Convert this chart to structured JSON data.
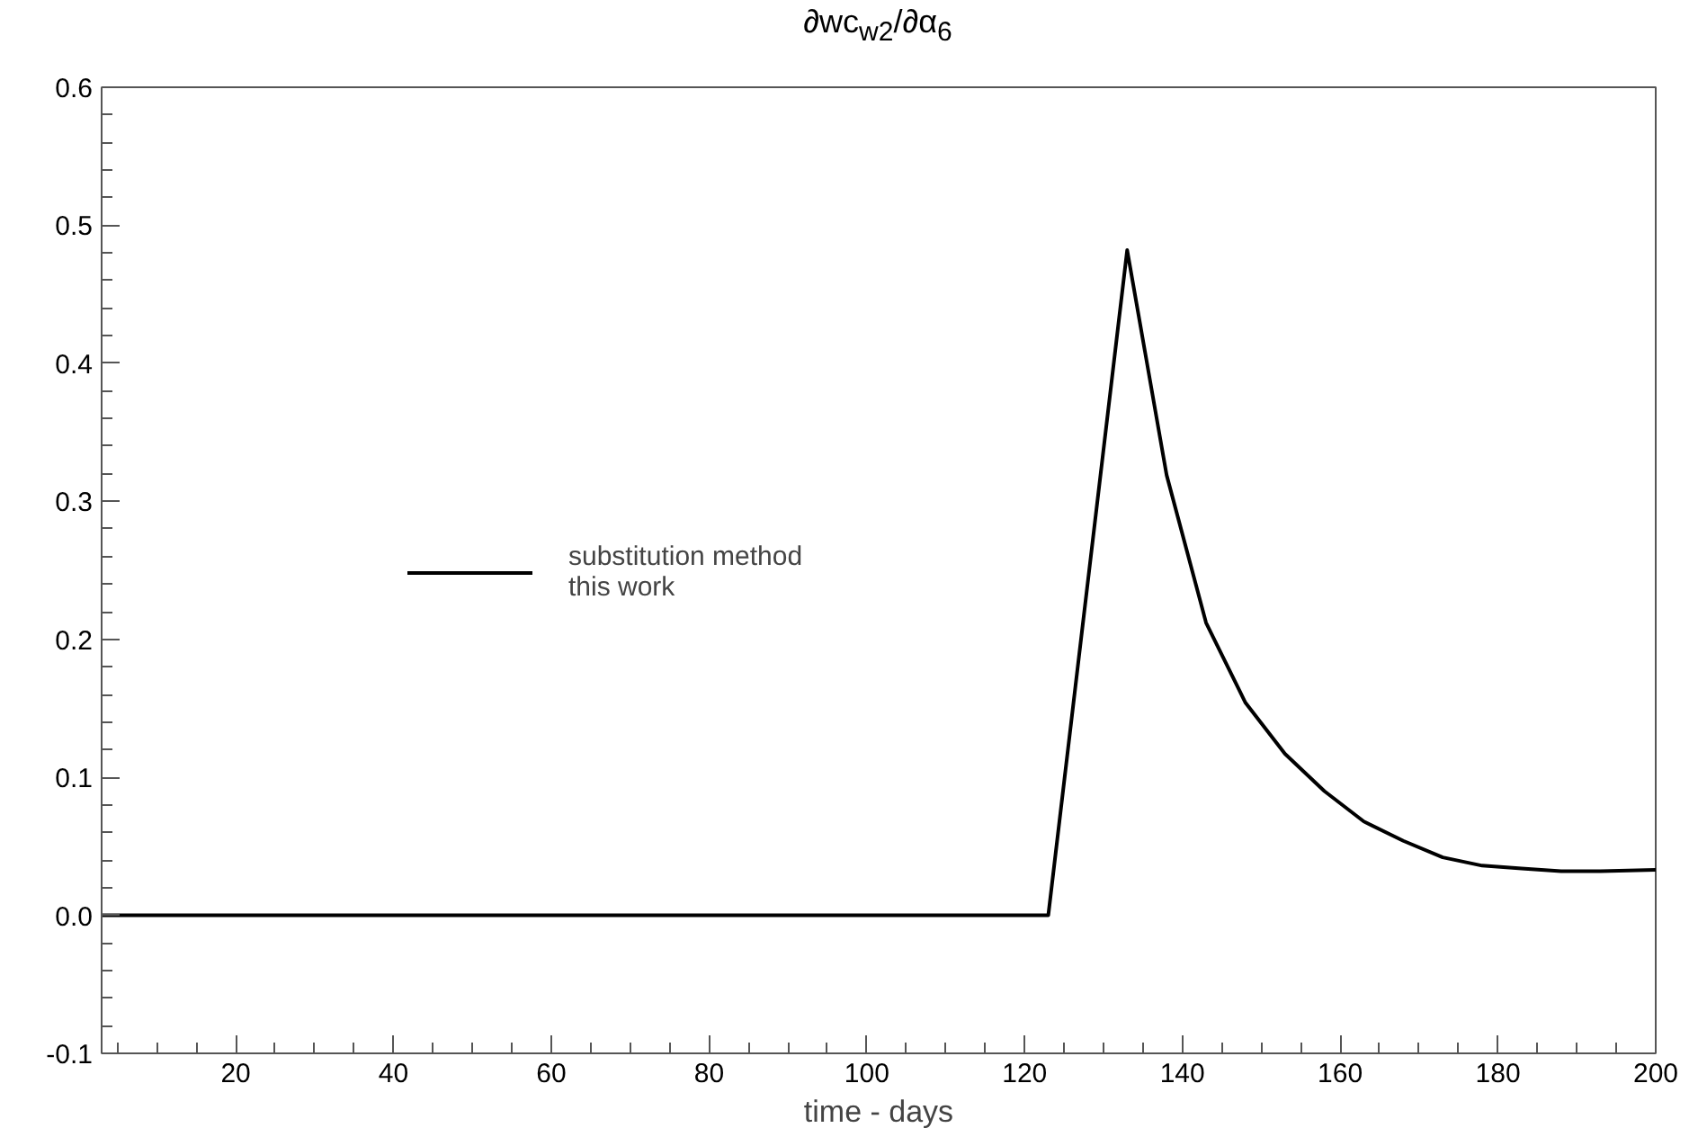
{
  "chart_data": {
    "type": "line",
    "title": "∂wc$_{w2}$/∂α$_{6}$",
    "xlabel": "time - days",
    "x": [
      3,
      123,
      133,
      138,
      143,
      148,
      153,
      158,
      163,
      168,
      173,
      178,
      183,
      188,
      193,
      200
    ],
    "series": [
      {
        "name": "substitution method\nthis work",
        "color": "#000000",
        "values": [
          0,
          0,
          0.482,
          0.319,
          0.212,
          0.154,
          0.117,
          0.09,
          0.068,
          0.054,
          0.042,
          0.036,
          0.034,
          0.032,
          0.032,
          0.033
        ]
      }
    ],
    "xlim": [
      3,
      200
    ],
    "ylim": [
      -0.1,
      0.6
    ],
    "xticks": [
      20,
      40,
      60,
      80,
      100,
      120,
      140,
      160,
      180,
      200
    ],
    "yticks": [
      {
        "value": -0.1,
        "label": "-0.1"
      },
      {
        "value": 0,
        "label": "0.0"
      },
      {
        "value": 0.1,
        "label": "0.1"
      },
      {
        "value": 0.2,
        "label": "0.2"
      },
      {
        "value": 0.3,
        "label": "0.3"
      },
      {
        "value": 0.4,
        "label": "0.4"
      },
      {
        "value": 0.5,
        "label": "0.5"
      },
      {
        "value": 0.6,
        "label": "0.6"
      }
    ],
    "grid": false,
    "legend": "left",
    "marker": "none",
    "line_style": "solid"
  }
}
